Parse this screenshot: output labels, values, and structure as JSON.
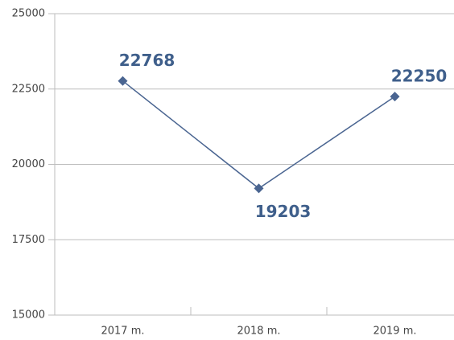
{
  "chart_data": {
    "type": "line",
    "categories": [
      "2017 m.",
      "2018 m.",
      "2019 m."
    ],
    "series": [
      {
        "color": "#4a6591",
        "values": [
          22768,
          19203,
          22250
        ]
      }
    ],
    "ylim": [
      15000,
      25000
    ],
    "yticks": [
      15000,
      17500,
      20000,
      22500,
      25000
    ],
    "grid": true
  }
}
